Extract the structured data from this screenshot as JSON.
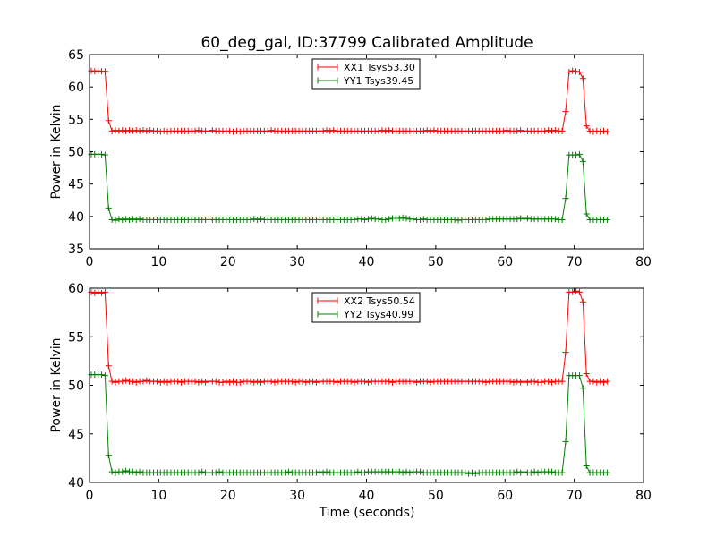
{
  "figure": {
    "title": "60_deg_gal, ID:37799 Calibrated Amplitude",
    "xlabel": "Time (seconds)"
  },
  "chart_data": [
    {
      "type": "line",
      "ylabel": "Power in Kelvin",
      "xlabel": "",
      "xlim": [
        0,
        80
      ],
      "ylim": [
        35,
        65
      ],
      "x_ticks": [
        "0",
        "10",
        "20",
        "30",
        "40",
        "50",
        "60",
        "70",
        "80"
      ],
      "y_ticks": [
        "35",
        "40",
        "45",
        "50",
        "55",
        "60",
        "65"
      ],
      "grid": false,
      "legend_position": "top-center",
      "x": [
        0.25,
        0.75,
        1.25,
        1.75,
        2.25,
        2.75,
        3.25,
        3.75,
        4.25,
        4.75,
        5.25,
        5.75,
        6.25,
        6.75,
        7.25,
        7.75,
        8.25,
        8.75,
        9.25,
        9.75,
        10.25,
        10.75,
        11.25,
        11.75,
        12.25,
        12.75,
        13.25,
        13.75,
        14.25,
        14.75,
        15.25,
        15.75,
        16.25,
        16.75,
        17.25,
        17.75,
        18.25,
        18.75,
        19.25,
        19.75,
        20.25,
        20.75,
        21.25,
        21.75,
        22.25,
        22.75,
        23.25,
        23.75,
        24.25,
        24.75,
        25.25,
        25.75,
        26.25,
        26.75,
        27.25,
        27.75,
        28.25,
        28.75,
        29.25,
        29.75,
        30.25,
        30.75,
        31.25,
        31.75,
        32.25,
        32.75,
        33.25,
        33.75,
        34.25,
        34.75,
        35.25,
        35.75,
        36.25,
        36.75,
        37.25,
        37.75,
        38.25,
        38.75,
        39.25,
        39.75,
        40.25,
        40.75,
        41.25,
        41.75,
        42.25,
        42.75,
        43.25,
        43.75,
        44.25,
        44.75,
        45.25,
        45.75,
        46.25,
        46.75,
        47.25,
        47.75,
        48.25,
        48.75,
        49.25,
        49.75,
        50.25,
        50.75,
        51.25,
        51.75,
        52.25,
        52.75,
        53.25,
        53.75,
        54.25,
        54.75,
        55.25,
        55.75,
        56.25,
        56.75,
        57.25,
        57.75,
        58.25,
        58.75,
        59.25,
        59.75,
        60.25,
        60.75,
        61.25,
        61.75,
        62.25,
        62.75,
        63.25,
        63.75,
        64.25,
        64.75,
        65.25,
        65.75,
        66.25,
        66.75,
        67.25,
        67.75,
        68.25,
        68.75,
        69.25,
        69.75,
        70.25,
        70.75,
        71.25,
        71.75,
        72.25,
        72.75,
        73.25,
        73.75,
        74.25,
        74.75
      ],
      "series": [
        {
          "name": "XX1 Tsys53.30",
          "color": "#ff0000",
          "values": [
            62.5,
            62.4,
            62.5,
            62.4,
            62.4,
            54.8,
            53.2,
            53.3,
            53.2,
            53.3,
            53.2,
            53.3,
            53.2,
            53.3,
            53.2,
            53.3,
            53.2,
            53.3,
            53.2,
            53.2,
            53.1,
            53.2,
            53.1,
            53.2,
            53.2,
            53.2,
            53.2,
            53.2,
            53.2,
            53.2,
            53.2,
            53.3,
            53.2,
            53.2,
            53.2,
            53.3,
            53.2,
            53.2,
            53.2,
            53.2,
            53.2,
            53.1,
            53.2,
            53.1,
            53.2,
            53.2,
            53.2,
            53.2,
            53.2,
            53.2,
            53.2,
            53.2,
            53.3,
            53.2,
            53.2,
            53.2,
            53.2,
            53.2,
            53.2,
            53.2,
            53.2,
            53.2,
            53.2,
            53.2,
            53.2,
            53.2,
            53.2,
            53.2,
            53.3,
            53.2,
            53.3,
            53.2,
            53.2,
            53.2,
            53.2,
            53.2,
            53.2,
            53.2,
            53.2,
            53.2,
            53.2,
            53.2,
            53.2,
            53.2,
            53.3,
            53.2,
            53.3,
            53.2,
            53.2,
            53.2,
            53.2,
            53.2,
            53.2,
            53.2,
            53.2,
            53.2,
            53.2,
            53.3,
            53.2,
            53.3,
            53.2,
            53.2,
            53.2,
            53.2,
            53.2,
            53.2,
            53.2,
            53.2,
            53.2,
            53.2,
            53.2,
            53.2,
            53.2,
            53.2,
            53.2,
            53.2,
            53.2,
            53.2,
            53.2,
            53.2,
            53.3,
            53.2,
            53.2,
            53.2,
            53.3,
            53.2,
            53.2,
            53.2,
            53.2,
            53.2,
            53.2,
            53.2,
            53.3,
            53.2,
            53.3,
            53.2,
            53.2,
            56.2,
            62.3,
            62.5,
            62.4,
            62.3,
            61.3,
            54.0,
            53.2,
            53.1,
            53.2,
            53.1,
            53.2,
            53.1
          ]
        },
        {
          "name": "YY1 Tsys39.45",
          "color": "#008000",
          "values": [
            49.6,
            49.6,
            49.6,
            49.6,
            49.5,
            41.3,
            39.5,
            39.4,
            39.6,
            39.5,
            39.6,
            39.5,
            39.6,
            39.5,
            39.6,
            39.5,
            39.5,
            39.5,
            39.5,
            39.5,
            39.5,
            39.5,
            39.5,
            39.5,
            39.5,
            39.5,
            39.5,
            39.5,
            39.5,
            39.5,
            39.5,
            39.5,
            39.5,
            39.5,
            39.5,
            39.5,
            39.5,
            39.5,
            39.5,
            39.5,
            39.5,
            39.5,
            39.5,
            39.5,
            39.5,
            39.5,
            39.5,
            39.6,
            39.5,
            39.6,
            39.5,
            39.5,
            39.5,
            39.5,
            39.5,
            39.5,
            39.5,
            39.5,
            39.5,
            39.5,
            39.5,
            39.5,
            39.5,
            39.5,
            39.5,
            39.5,
            39.5,
            39.5,
            39.5,
            39.5,
            39.5,
            39.5,
            39.5,
            39.5,
            39.5,
            39.5,
            39.5,
            39.6,
            39.6,
            39.5,
            39.6,
            39.7,
            39.6,
            39.6,
            39.5,
            39.5,
            39.6,
            39.7,
            39.7,
            39.7,
            39.8,
            39.7,
            39.6,
            39.6,
            39.5,
            39.5,
            39.6,
            39.5,
            39.5,
            39.5,
            39.5,
            39.5,
            39.5,
            39.5,
            39.5,
            39.5,
            39.4,
            39.5,
            39.5,
            39.5,
            39.5,
            39.5,
            39.5,
            39.5,
            39.5,
            39.6,
            39.6,
            39.6,
            39.6,
            39.6,
            39.6,
            39.6,
            39.6,
            39.6,
            39.7,
            39.6,
            39.7,
            39.6,
            39.6,
            39.6,
            39.6,
            39.6,
            39.6,
            39.6,
            39.6,
            39.5,
            39.5,
            42.8,
            49.5,
            49.5,
            49.5,
            49.6,
            48.5,
            40.4,
            39.5,
            39.5,
            39.5,
            39.5,
            39.5,
            39.5
          ]
        }
      ]
    },
    {
      "type": "line",
      "ylabel": "Power in Kelvin",
      "xlabel": "Time (seconds)",
      "xlim": [
        0,
        80
      ],
      "ylim": [
        40,
        60
      ],
      "x_ticks": [
        "0",
        "10",
        "20",
        "30",
        "40",
        "50",
        "60",
        "70",
        "80"
      ],
      "y_ticks": [
        "40",
        "45",
        "50",
        "55",
        "60"
      ],
      "grid": false,
      "legend_position": "top-center",
      "x": [
        0.25,
        0.75,
        1.25,
        1.75,
        2.25,
        2.75,
        3.25,
        3.75,
        4.25,
        4.75,
        5.25,
        5.75,
        6.25,
        6.75,
        7.25,
        7.75,
        8.25,
        8.75,
        9.25,
        9.75,
        10.25,
        10.75,
        11.25,
        11.75,
        12.25,
        12.75,
        13.25,
        13.75,
        14.25,
        14.75,
        15.25,
        15.75,
        16.25,
        16.75,
        17.25,
        17.75,
        18.25,
        18.75,
        19.25,
        19.75,
        20.25,
        20.75,
        21.25,
        21.75,
        22.25,
        22.75,
        23.25,
        23.75,
        24.25,
        24.75,
        25.25,
        25.75,
        26.25,
        26.75,
        27.25,
        27.75,
        28.25,
        28.75,
        29.25,
        29.75,
        30.25,
        30.75,
        31.25,
        31.75,
        32.25,
        32.75,
        33.25,
        33.75,
        34.25,
        34.75,
        35.25,
        35.75,
        36.25,
        36.75,
        37.25,
        37.75,
        38.25,
        38.75,
        39.25,
        39.75,
        40.25,
        40.75,
        41.25,
        41.75,
        42.25,
        42.75,
        43.25,
        43.75,
        44.25,
        44.75,
        45.25,
        45.75,
        46.25,
        46.75,
        47.25,
        47.75,
        48.25,
        48.75,
        49.25,
        49.75,
        50.25,
        50.75,
        51.25,
        51.75,
        52.25,
        52.75,
        53.25,
        53.75,
        54.25,
        54.75,
        55.25,
        55.75,
        56.25,
        56.75,
        57.25,
        57.75,
        58.25,
        58.75,
        59.25,
        59.75,
        60.25,
        60.75,
        61.25,
        61.75,
        62.25,
        62.75,
        63.25,
        63.75,
        64.25,
        64.75,
        65.25,
        65.75,
        66.25,
        66.75,
        67.25,
        67.75,
        68.25,
        68.75,
        69.25,
        69.75,
        70.25,
        70.75,
        71.25,
        71.75,
        72.25,
        72.75,
        73.25,
        73.75,
        74.25,
        74.75
      ],
      "series": [
        {
          "name": "XX2 Tsys50.54",
          "color": "#ff0000",
          "values": [
            59.6,
            59.5,
            59.6,
            59.5,
            59.6,
            52.0,
            50.4,
            50.3,
            50.4,
            50.4,
            50.5,
            50.4,
            50.4,
            50.3,
            50.4,
            50.4,
            50.5,
            50.4,
            50.4,
            50.4,
            50.3,
            50.4,
            50.3,
            50.4,
            50.4,
            50.4,
            50.3,
            50.4,
            50.4,
            50.4,
            50.4,
            50.3,
            50.4,
            50.3,
            50.4,
            50.4,
            50.4,
            50.3,
            50.3,
            50.4,
            50.3,
            50.4,
            50.3,
            50.3,
            50.4,
            50.4,
            50.4,
            50.3,
            50.4,
            50.3,
            50.4,
            50.4,
            50.4,
            50.3,
            50.4,
            50.4,
            50.4,
            50.4,
            50.4,
            50.3,
            50.4,
            50.4,
            50.3,
            50.4,
            50.4,
            50.3,
            50.4,
            50.4,
            50.4,
            50.4,
            50.4,
            50.3,
            50.4,
            50.4,
            50.4,
            50.4,
            50.3,
            50.4,
            50.4,
            50.4,
            50.3,
            50.4,
            50.4,
            50.4,
            50.4,
            50.4,
            50.4,
            50.3,
            50.4,
            50.4,
            50.4,
            50.4,
            50.4,
            50.4,
            50.3,
            50.4,
            50.4,
            50.4,
            50.3,
            50.4,
            50.4,
            50.4,
            50.4,
            50.4,
            50.4,
            50.4,
            50.4,
            50.4,
            50.4,
            50.4,
            50.4,
            50.4,
            50.4,
            50.4,
            50.3,
            50.4,
            50.4,
            50.4,
            50.4,
            50.4,
            50.4,
            50.4,
            50.3,
            50.4,
            50.3,
            50.4,
            50.3,
            50.4,
            50.4,
            50.3,
            50.3,
            50.4,
            50.4,
            50.3,
            50.4,
            50.4,
            50.4,
            53.4,
            59.6,
            59.6,
            59.7,
            59.6,
            58.6,
            51.2,
            50.4,
            50.4,
            50.3,
            50.4,
            50.3,
            50.4
          ]
        },
        {
          "name": "YY2 Tsys40.99",
          "color": "#008000",
          "values": [
            51.1,
            51.1,
            51.1,
            51.1,
            51.0,
            42.8,
            41.1,
            41.0,
            41.1,
            41.1,
            41.2,
            41.1,
            41.1,
            41.0,
            41.1,
            41.0,
            41.0,
            41.0,
            41.0,
            41.0,
            41.0,
            41.0,
            41.0,
            41.0,
            41.0,
            41.0,
            41.0,
            41.0,
            41.0,
            41.0,
            41.0,
            41.0,
            41.1,
            41.0,
            41.0,
            41.0,
            41.0,
            41.1,
            41.0,
            41.0,
            41.0,
            41.0,
            41.0,
            41.0,
            41.0,
            41.0,
            41.0,
            41.0,
            41.0,
            41.0,
            41.0,
            41.0,
            41.0,
            41.0,
            41.0,
            41.0,
            41.0,
            41.1,
            41.0,
            41.0,
            41.0,
            41.0,
            41.0,
            41.0,
            41.0,
            41.0,
            41.1,
            41.0,
            41.1,
            41.0,
            41.0,
            41.0,
            41.0,
            41.0,
            41.0,
            41.0,
            41.0,
            41.1,
            41.0,
            41.0,
            41.1,
            41.1,
            41.1,
            41.1,
            41.1,
            41.1,
            41.1,
            41.1,
            41.1,
            41.1,
            41.0,
            41.1,
            41.0,
            41.1,
            41.1,
            41.1,
            41.0,
            41.0,
            41.0,
            41.0,
            41.0,
            41.0,
            41.0,
            41.0,
            41.0,
            41.0,
            41.0,
            41.0,
            41.0,
            40.9,
            41.0,
            40.9,
            41.0,
            41.0,
            41.0,
            41.0,
            41.0,
            41.0,
            41.0,
            41.0,
            41.0,
            41.0,
            41.0,
            41.1,
            41.0,
            41.1,
            41.0,
            41.0,
            41.1,
            41.0,
            41.1,
            41.1,
            41.1,
            41.1,
            41.0,
            41.0,
            41.0,
            44.2,
            51.0,
            51.0,
            51.0,
            51.0,
            49.7,
            41.7,
            41.0,
            41.0,
            41.0,
            41.0,
            41.0,
            41.0
          ]
        }
      ]
    }
  ]
}
